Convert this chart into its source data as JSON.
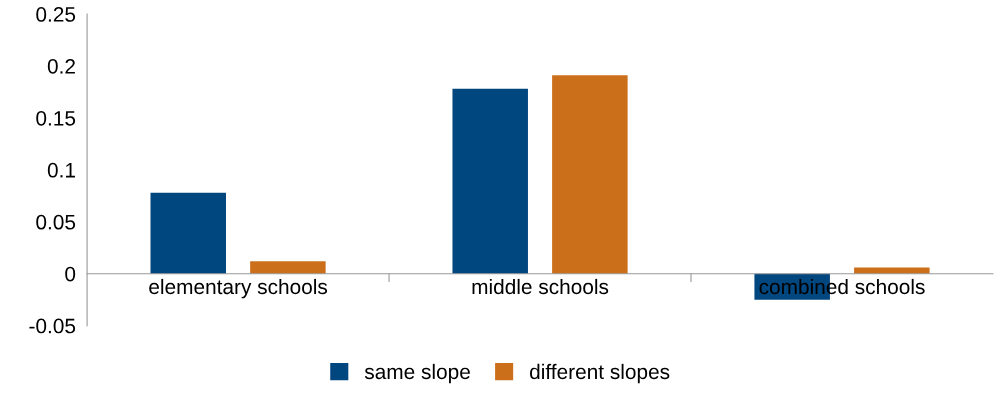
{
  "chart_data": {
    "type": "bar",
    "categories": [
      "elementary schools",
      "middle schools",
      "combined schools"
    ],
    "series": [
      {
        "name": "same slope",
        "color": "#00467f",
        "values": [
          0.078,
          0.178,
          -0.025
        ]
      },
      {
        "name": "different slopes",
        "color": "#cc6f1a",
        "values": [
          0.012,
          0.191,
          0.006
        ]
      }
    ],
    "ylim": [
      -0.05,
      0.25
    ],
    "yticks": [
      -0.05,
      0,
      0.05,
      0.1,
      0.15,
      0.2,
      0.25
    ],
    "grid": false,
    "legend": "bottom"
  }
}
